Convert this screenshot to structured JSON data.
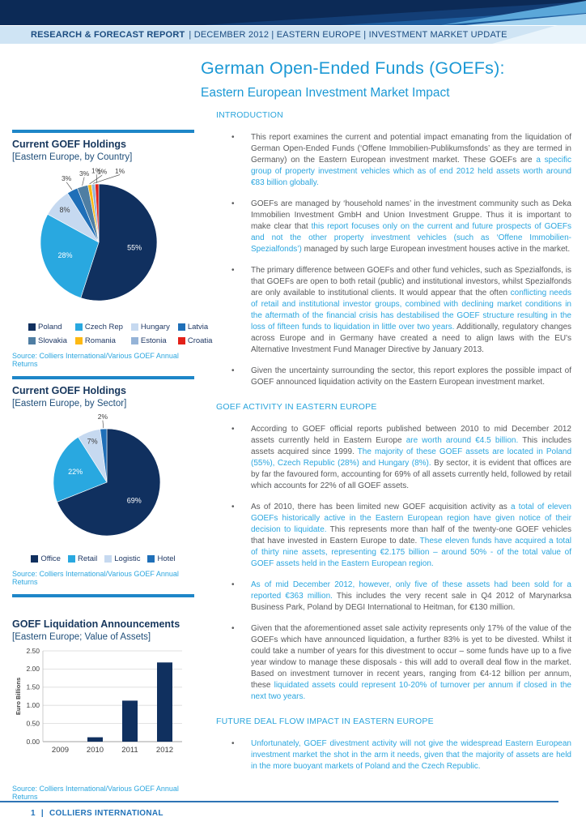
{
  "header": {
    "report_type": "RESEARCH & FORECAST REPORT",
    "meta": "| DECEMBER 2012 | EASTERN EUROPE | INVESTMENT MARKET UPDATE"
  },
  "title": "German Open-Ended Funds (GOEFs):",
  "subtitle": "Eastern European Investment Market Impact",
  "colors": {
    "accent_blue": "#29a8e0",
    "navy": "#10305f",
    "divider_blue": "#1e86c8",
    "body_gray": "#58595b",
    "body_blue": "#2ba6df",
    "footer_blue": "#2e74b5",
    "strip_bg": "#cfe4f4"
  },
  "chart_data": [
    {
      "type": "pie",
      "title": "Current GOEF Holdings",
      "subtitle": "[Eastern Europe, by Country]",
      "labels": [
        "Poland",
        "Czech Rep",
        "Hungary",
        "Latvia",
        "Slovakia",
        "Romania",
        "Estonia",
        "Croatia"
      ],
      "values": [
        55,
        28,
        8,
        3,
        3,
        1,
        1,
        1
      ],
      "value_suffix": "%",
      "colors": [
        "#10305f",
        "#29a8e0",
        "#c6d9f0",
        "#1f6fb8",
        "#4f7ea3",
        "#fdb913",
        "#95b3d7",
        "#e32119"
      ],
      "legend_position": "bottom",
      "source": "Source: Colliers International/Various GOEF Annual Returns"
    },
    {
      "type": "pie",
      "title": "Current GOEF Holdings",
      "subtitle": "[Eastern Europe, by Sector]",
      "labels": [
        "Office",
        "Retail",
        "Logistic",
        "Hotel"
      ],
      "values": [
        69,
        22,
        7,
        2
      ],
      "value_suffix": "%",
      "colors": [
        "#10305f",
        "#29a8e0",
        "#c6d9f0",
        "#1f6fb8"
      ],
      "legend_position": "bottom",
      "source": "Source: Colliers International/Various GOEF Annual Returns"
    },
    {
      "type": "bar",
      "title": "GOEF Liquidation Announcements",
      "subtitle": "[Eastern Europe; Value of Assets]",
      "categories": [
        "2009",
        "2010",
        "2011",
        "2012"
      ],
      "values": [
        0,
        0.12,
        1.13,
        2.18
      ],
      "ylabel": "Euro Billions",
      "ylim": [
        0,
        2.5
      ],
      "yticks": [
        "0.00",
        "0.50",
        "1.00",
        "1.50",
        "2.00",
        "2.50"
      ],
      "grid": true,
      "bar_color": "#10305f",
      "source": "Source: Colliers International/Various GOEF Annual Returns"
    }
  ],
  "sections": [
    {
      "id": "introduction",
      "heading": "INTRODUCTION",
      "bullets": [
        [
          {
            "color": "gray",
            "text": "This report examines the current and potential impact emanating from the liquidation of German Open-Ended Funds (‘Offene Immobilien-Publikumsfonds’ as they are termed in Germany) on the Eastern European investment market. These GOEFs are "
          },
          {
            "color": "blue",
            "text": "a specific group of property investment vehicles which as of end 2012 held assets worth around €83 billion globally."
          }
        ],
        [
          {
            "color": "gray",
            "text": "GOEFs are managed by ‘household names’ in the investment community such as Deka Immobilien Investment GmbH and Union Investment Gruppe. Thus it is important to make clear that "
          },
          {
            "color": "blue",
            "text": "this report focuses only on the current and future prospects of GOEFs and not the other property investment vehicles (such as ‘Offene Immobilien-Spezialfonds’)"
          },
          {
            "color": "gray",
            "text": " managed by such large European investment houses active in the market."
          }
        ],
        [
          {
            "color": "gray",
            "text": "The primary difference between GOEFs and other fund vehicles, such as Spezialfonds, is that GOEFs are open to both retail (public) and institutional investors, whilst Spezialfonds are only available to institutional clients. It would appear that the often "
          },
          {
            "color": "blue",
            "text": "conflicting needs of retail and institutional investor groups, combined with declining market conditions in the aftermath of the financial crisis has destabilised the GOEF structure resulting in the loss of fifteen funds to liquidation in little over two years."
          },
          {
            "color": "gray",
            "text": " Additionally, regulatory changes across Europe and in Germany have created a need to align laws with the EU's Alternative Investment Fund Manager Directive by January 2013."
          }
        ],
        [
          {
            "color": "gray",
            "text": "Given the uncertainty surrounding the sector, this report explores the possible impact of GOEF announced liquidation activity on the Eastern European investment market."
          }
        ]
      ]
    },
    {
      "id": "activity",
      "heading": "GOEF ACTIVITY IN EASTERN EUROPE",
      "bullets": [
        [
          {
            "color": "gray",
            "text": "According to GOEF official reports published between 2010 to mid December 2012 assets currently held in Eastern Europe "
          },
          {
            "color": "blue",
            "text": "are worth around €4.5 billion."
          },
          {
            "color": "gray",
            "text": " This includes assets acquired since 1999. "
          },
          {
            "color": "blue",
            "text": "The majority of these GOEF assets are located in Poland (55%), Czech Republic (28%) and Hungary (8%)."
          },
          {
            "color": "gray",
            "text": " By sector, it is evident that offices are by far the favoured form, accounting for 69% of all assets currently held, followed by retail which accounts for 22% of all GOEF assets."
          }
        ],
        [
          {
            "color": "gray",
            "text": "As of 2010, there has been limited new GOEF acquisition activity as "
          },
          {
            "color": "blue",
            "text": "a total of eleven GOEFs historically active in the Eastern European region have given notice of their decision to liquidate."
          },
          {
            "color": "gray",
            "text": " This represents more than half of the twenty-one GOEF vehicles that have invested in Eastern Europe to date. "
          },
          {
            "color": "blue",
            "text": "These eleven funds have acquired a total of thirty nine assets, representing €2.175 billion – around 50% - of the total value of GOEF assets held in the Eastern European region."
          }
        ],
        [
          {
            "color": "blue",
            "text": "As of mid December 2012, however, only five of these assets had been sold for a reported €363 million."
          },
          {
            "color": "gray",
            "text": " This includes the very recent sale in Q4 2012 of Marynarksa Business Park, Poland by DEGI International to Heitman, for €130 million."
          }
        ],
        [
          {
            "color": "gray",
            "text": "Given that the aforementioned asset sale activity represents only 17% of the value of the GOEFs which have announced liquidation, a further 83% is yet to be divested. Whilst it could take a number of years for this divestment to occur – some funds have up to a five year window to manage these disposals - this will add to overall deal flow in the market. Based on investment turnover in recent years, ranging from €4-12 billion per annum, these "
          },
          {
            "color": "blue",
            "text": "liquidated assets could represent 10-20% of turnover per annum if closed in the next two years."
          }
        ]
      ]
    },
    {
      "id": "future",
      "heading": "FUTURE DEAL FLOW IMPACT IN EASTERN EUROPE",
      "bullets": [
        [
          {
            "color": "blue",
            "text": "Unfortunately, GOEF divestment activity will not give the widespread Eastern European investment market the shot in the arm it needs, given that the majority of assets are held in the more buoyant markets of Poland and the Czech Republic."
          }
        ]
      ]
    }
  ],
  "footer": {
    "page": "1",
    "separator": "|",
    "company": "COLLIERS INTERNATIONAL"
  }
}
